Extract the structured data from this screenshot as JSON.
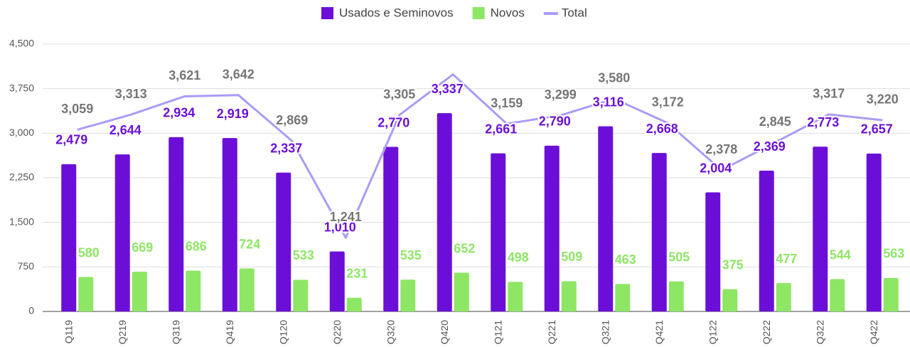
{
  "chart_data": {
    "type": "bar",
    "categories": [
      "Q119",
      "Q219",
      "Q319",
      "Q419",
      "Q120",
      "Q220",
      "Q320",
      "Q420",
      "Q121",
      "Q221",
      "Q321",
      "Q421",
      "Q122",
      "Q222",
      "Q322",
      "Q422"
    ],
    "series": [
      {
        "name": "Usados e Seminovos",
        "color": "#6b0fd8",
        "type": "bar",
        "values": [
          2479,
          2644,
          2934,
          2919,
          2337,
          1010,
          2770,
          3337,
          2661,
          2790,
          3116,
          2668,
          2004,
          2369,
          2773,
          2657
        ],
        "value_labels": [
          "2,479",
          "2,644",
          "2,934",
          "2,919",
          "2,337",
          "1,010",
          "2,770",
          "3,337",
          "2,661",
          "2,790",
          "3,116",
          "2,668",
          "2,004",
          "2,369",
          "2,773",
          "2,657"
        ]
      },
      {
        "name": "Novos",
        "color": "#8ee665",
        "type": "bar",
        "values": [
          580,
          669,
          686,
          724,
          533,
          231,
          535,
          652,
          498,
          509,
          463,
          505,
          375,
          477,
          544,
          563
        ]
      },
      {
        "name": "Total",
        "color": "#a99cf5",
        "type": "line",
        "values": [
          3059,
          3313,
          3621,
          3642,
          2869,
          1241,
          3305,
          3989,
          3159,
          3299,
          3580,
          3172,
          2378,
          2845,
          3317,
          3220
        ],
        "value_labels": [
          "3,059",
          "3,313",
          "3,621",
          "3,642",
          "2,869",
          "1,241",
          "3,305",
          null,
          "3,159",
          "3,299",
          "3,580",
          "3,172",
          "2,378",
          "2,845",
          "3,317",
          "3,220"
        ]
      }
    ],
    "ylim": [
      0,
      4500
    ],
    "yticks": [
      0,
      {
        "value": 750,
        "label": "750"
      },
      {
        "value": 1500,
        "label": "1,500"
      },
      {
        "value": 2250,
        "label": "2,250"
      },
      {
        "value": 3000,
        "label": "3,000"
      },
      {
        "value": 3750,
        "label": "3,750"
      },
      {
        "value": 4500,
        "label": "4,500"
      }
    ],
    "grid": true,
    "legend": "top"
  }
}
